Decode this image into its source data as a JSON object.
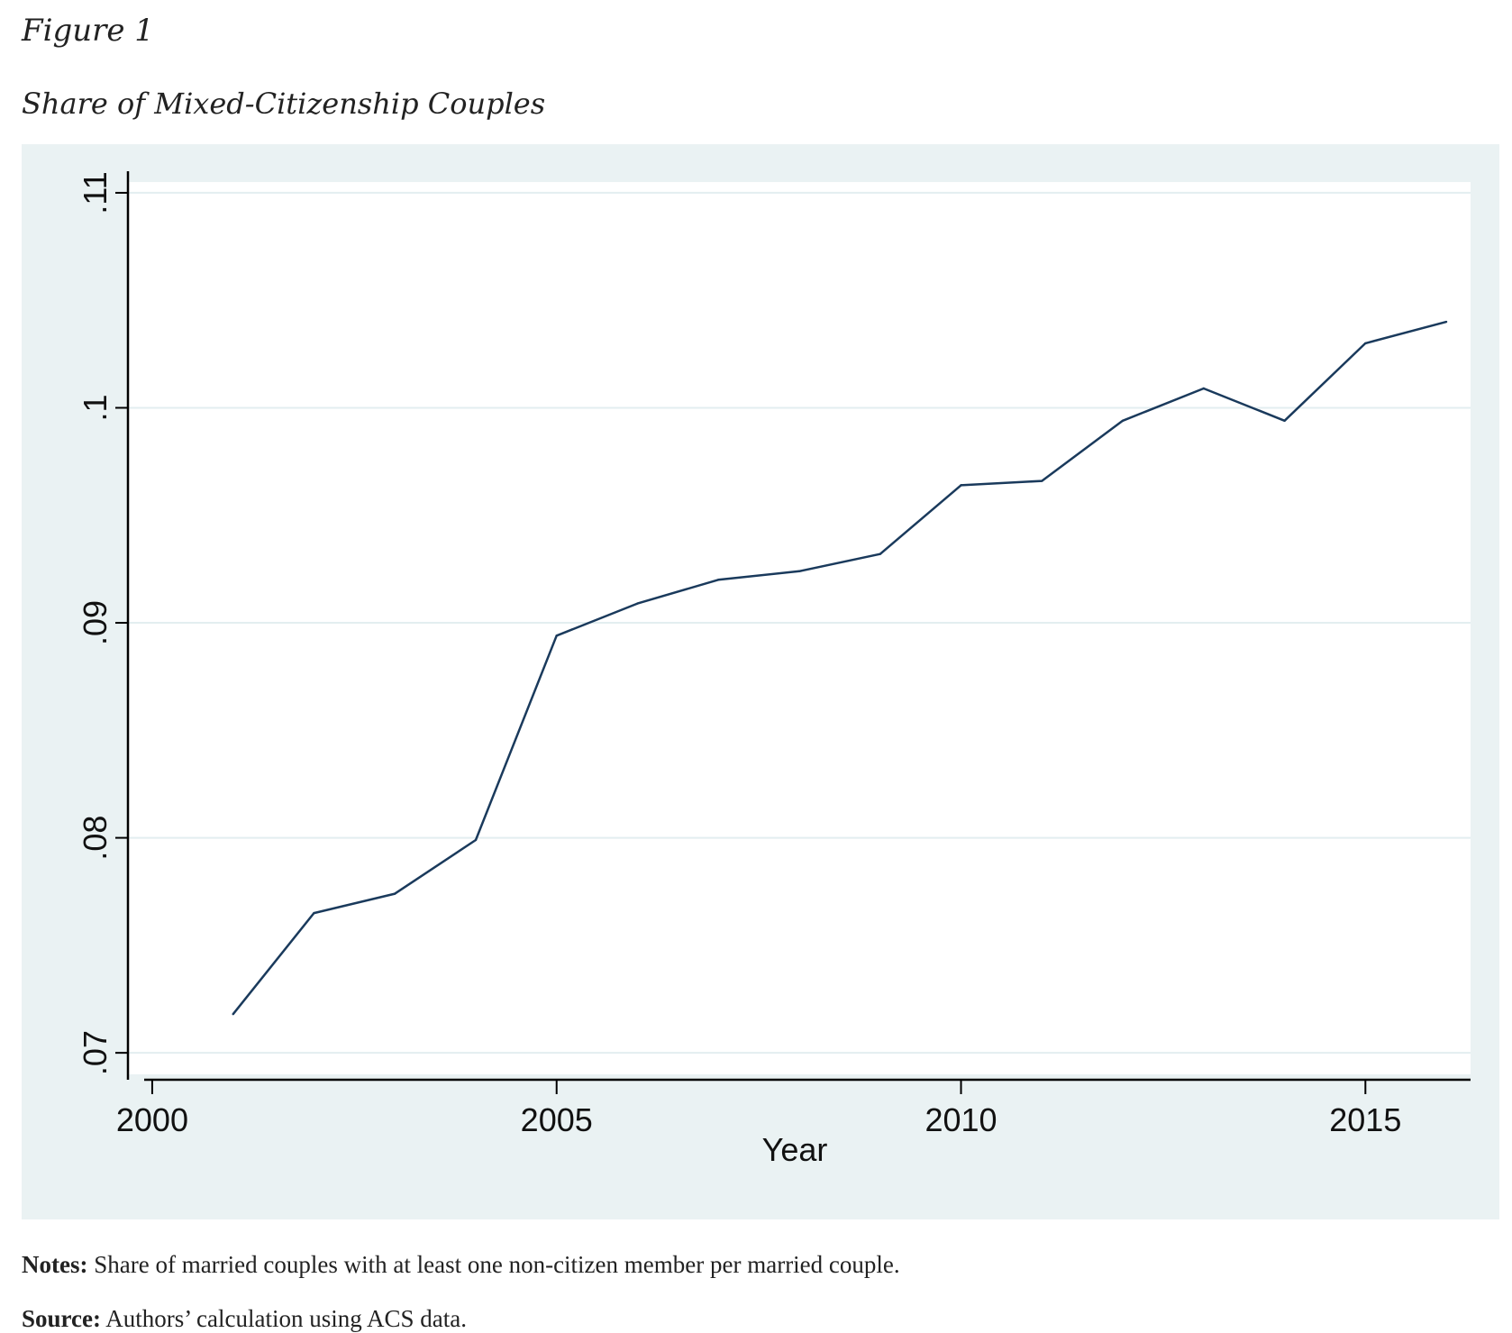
{
  "figure": {
    "label": "Figure 1",
    "title": "Share of Mixed-Citizenship Couples"
  },
  "notes": {
    "notes_label": "Notes:",
    "notes_text": "Share of married couples with at least one non-citizen member per married couple.",
    "source_label": "Source:",
    "source_text": "Authors’ calculation using ACS data."
  },
  "colors": {
    "panel_background": "#eaf2f3",
    "plot_background": "#ffffff",
    "line": "#1a3a5c",
    "gridline": "#e3eef0"
  },
  "chart_data": {
    "type": "line",
    "title": "",
    "xlabel": "Year",
    "ylabel": "",
    "x": [
      2001,
      2002,
      2003,
      2004,
      2005,
      2006,
      2007,
      2008,
      2009,
      2010,
      2011,
      2012,
      2013,
      2014,
      2015,
      2016
    ],
    "series": [
      {
        "name": "Share of mixed-citizenship couples",
        "values": [
          0.0718,
          0.0765,
          0.0774,
          0.0799,
          0.0894,
          0.0909,
          0.092,
          0.0924,
          0.0932,
          0.0964,
          0.0966,
          0.0994,
          0.1009,
          0.0994,
          0.103,
          0.104
        ]
      }
    ],
    "xlim": [
      1999.7,
      2016.3
    ],
    "ylim": [
      0.069,
      0.1105
    ],
    "xticks": [
      2000,
      2005,
      2010,
      2015
    ],
    "xtick_labels": [
      "2000",
      "2005",
      "2010",
      "2015"
    ],
    "yticks": [
      0.07,
      0.08,
      0.09,
      0.1,
      0.11
    ],
    "ytick_labels": [
      ".07",
      ".08",
      ".09",
      ".1",
      ".11"
    ],
    "grid": true,
    "legend": "none"
  }
}
